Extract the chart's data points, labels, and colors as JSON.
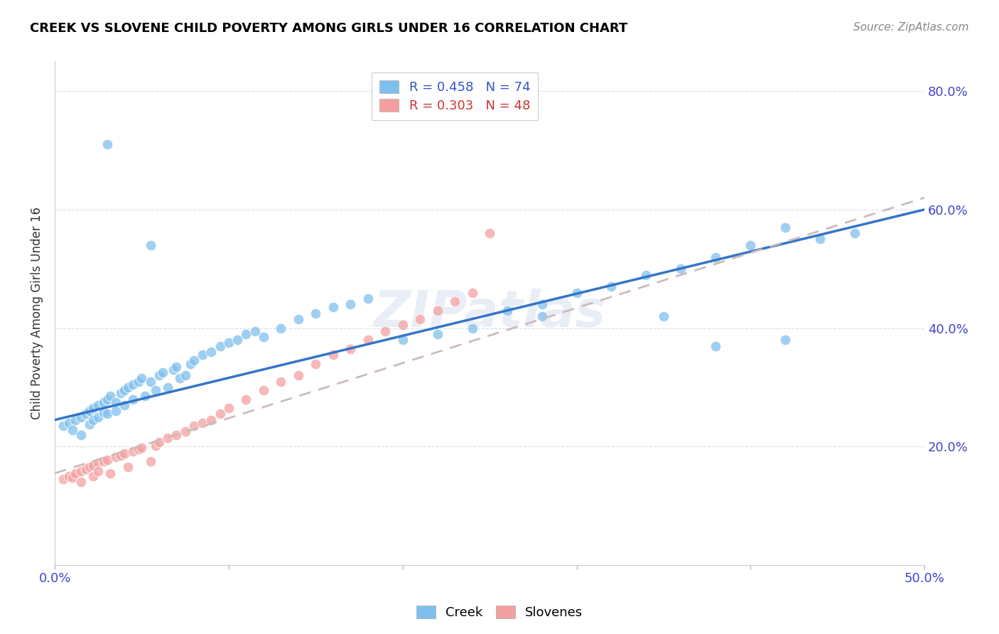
{
  "title": "CREEK VS SLOVENE CHILD POVERTY AMONG GIRLS UNDER 16 CORRELATION CHART",
  "source": "Source: ZipAtlas.com",
  "ylabel": "Child Poverty Among Girls Under 16",
  "xlim": [
    0.0,
    0.5
  ],
  "ylim": [
    0.0,
    0.85
  ],
  "creek_r": 0.458,
  "creek_n": 74,
  "slovene_r": 0.303,
  "slovene_n": 48,
  "creek_color": "#7fbfed",
  "slovene_color": "#f4a0a0",
  "creek_line_color": "#3575c8",
  "slovene_line_color": "#d4a0b0",
  "watermark": "ZIPatlas",
  "title_fontsize": 13,
  "source_fontsize": 11,
  "tick_label_color": "#4444cc",
  "ylabel_color": "#333333",
  "creek_intercept": 0.245,
  "creek_slope": 0.71,
  "slovene_intercept": 0.155,
  "slovene_slope": 0.93,
  "creek_x": [
    0.005,
    0.008,
    0.01,
    0.012,
    0.015,
    0.015,
    0.018,
    0.02,
    0.02,
    0.022,
    0.022,
    0.025,
    0.025,
    0.028,
    0.028,
    0.03,
    0.03,
    0.032,
    0.035,
    0.035,
    0.038,
    0.04,
    0.04,
    0.042,
    0.045,
    0.045,
    0.048,
    0.05,
    0.052,
    0.055,
    0.058,
    0.06,
    0.062,
    0.065,
    0.068,
    0.07,
    0.072,
    0.075,
    0.078,
    0.08,
    0.085,
    0.09,
    0.095,
    0.1,
    0.105,
    0.11,
    0.115,
    0.12,
    0.13,
    0.14,
    0.15,
    0.16,
    0.17,
    0.18,
    0.2,
    0.22,
    0.24,
    0.26,
    0.28,
    0.3,
    0.32,
    0.34,
    0.36,
    0.38,
    0.4,
    0.42,
    0.44,
    0.46,
    0.35,
    0.28,
    0.42,
    0.38,
    0.03,
    0.055
  ],
  "creek_y": [
    0.235,
    0.24,
    0.228,
    0.245,
    0.25,
    0.22,
    0.255,
    0.26,
    0.238,
    0.265,
    0.245,
    0.27,
    0.25,
    0.275,
    0.258,
    0.28,
    0.255,
    0.285,
    0.275,
    0.26,
    0.29,
    0.295,
    0.27,
    0.3,
    0.305,
    0.28,
    0.31,
    0.315,
    0.285,
    0.31,
    0.295,
    0.32,
    0.325,
    0.3,
    0.33,
    0.335,
    0.315,
    0.32,
    0.34,
    0.345,
    0.355,
    0.36,
    0.37,
    0.375,
    0.38,
    0.39,
    0.395,
    0.385,
    0.4,
    0.415,
    0.425,
    0.435,
    0.44,
    0.45,
    0.38,
    0.39,
    0.4,
    0.43,
    0.44,
    0.46,
    0.47,
    0.49,
    0.5,
    0.52,
    0.54,
    0.57,
    0.55,
    0.56,
    0.42,
    0.42,
    0.38,
    0.37,
    0.71,
    0.54
  ],
  "slovene_x": [
    0.005,
    0.008,
    0.01,
    0.012,
    0.015,
    0.015,
    0.018,
    0.02,
    0.022,
    0.022,
    0.025,
    0.025,
    0.028,
    0.03,
    0.032,
    0.035,
    0.038,
    0.04,
    0.042,
    0.045,
    0.048,
    0.05,
    0.055,
    0.058,
    0.06,
    0.065,
    0.07,
    0.075,
    0.08,
    0.085,
    0.09,
    0.095,
    0.1,
    0.11,
    0.12,
    0.13,
    0.14,
    0.15,
    0.16,
    0.17,
    0.18,
    0.19,
    0.2,
    0.21,
    0.22,
    0.23,
    0.24,
    0.25
  ],
  "slovene_y": [
    0.145,
    0.15,
    0.148,
    0.155,
    0.158,
    0.14,
    0.162,
    0.165,
    0.168,
    0.15,
    0.172,
    0.158,
    0.175,
    0.178,
    0.155,
    0.182,
    0.185,
    0.188,
    0.165,
    0.192,
    0.195,
    0.198,
    0.175,
    0.202,
    0.208,
    0.215,
    0.22,
    0.225,
    0.235,
    0.24,
    0.245,
    0.255,
    0.265,
    0.28,
    0.295,
    0.31,
    0.32,
    0.34,
    0.355,
    0.365,
    0.38,
    0.395,
    0.405,
    0.415,
    0.43,
    0.445,
    0.46,
    0.56
  ]
}
